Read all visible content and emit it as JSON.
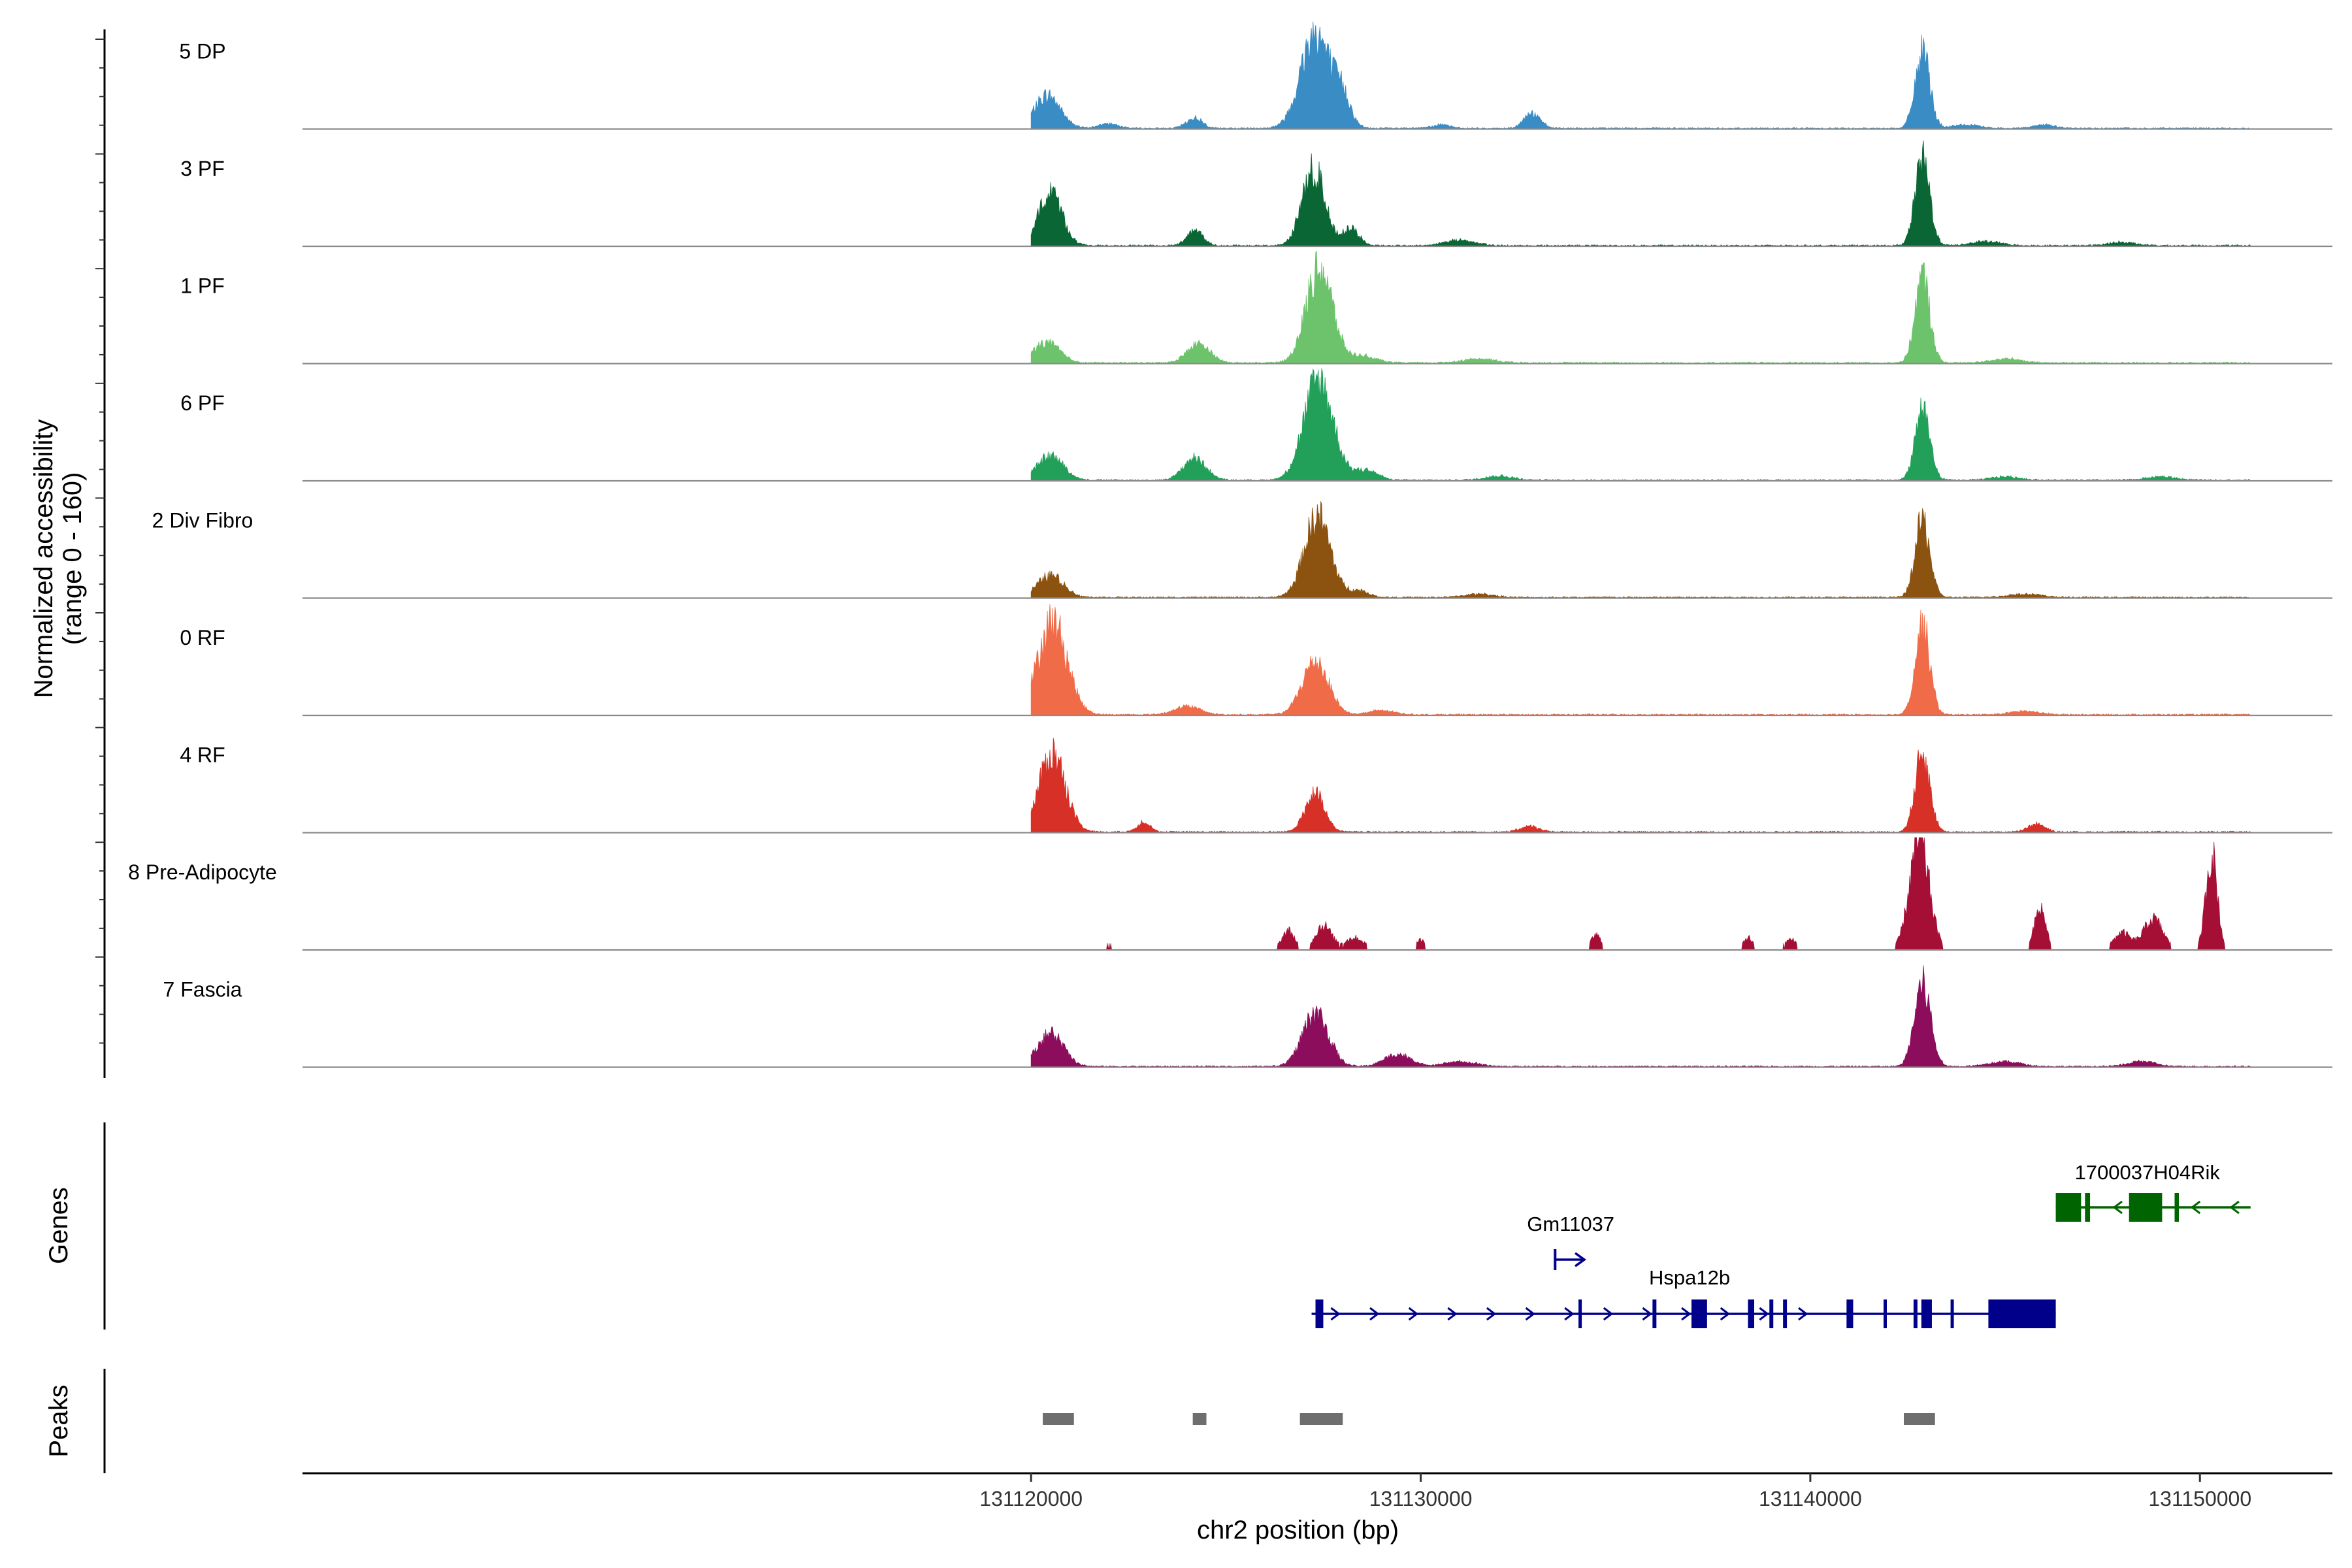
{
  "chart_data": {
    "type": "area",
    "title": "",
    "ylabel": "Normalized accessibility\n(range 0 - 160)",
    "xlabel": "chr2 position (bp)",
    "xlim": [
      131101300,
      131153400
    ],
    "ylim": [
      0,
      160
    ],
    "x_ticks": [
      131120000,
      131130000,
      131140000,
      131150000
    ],
    "x_tick_labels": [
      "131120000",
      "131130000",
      "131140000",
      "131150000"
    ],
    "tracks": [
      {
        "name": "5 DP",
        "color": "#3a8cc4",
        "peaks": [
          [
            131120420,
            48,
            800
          ],
          [
            131122000,
            7,
            600
          ],
          [
            131124200,
            15,
            500
          ],
          [
            131127300,
            140,
            900
          ],
          [
            131128000,
            40,
            500
          ],
          [
            131130500,
            5,
            600
          ],
          [
            131132850,
            22,
            500
          ],
          [
            131142880,
            110,
            450
          ],
          [
            131144000,
            5,
            800
          ],
          [
            131146000,
            5,
            700
          ]
        ]
      },
      {
        "name": "3 PF",
        "color": "#0a6634",
        "peaks": [
          [
            131120500,
            80,
            700
          ],
          [
            131124200,
            22,
            500
          ],
          [
            131127250,
            110,
            700
          ],
          [
            131128200,
            25,
            500
          ],
          [
            131131000,
            8,
            900
          ],
          [
            131142880,
            125,
            450
          ],
          [
            131144500,
            6,
            900
          ],
          [
            131148000,
            5,
            800
          ]
        ]
      },
      {
        "name": "1 PF",
        "color": "#6cc36c",
        "peaks": [
          [
            131120400,
            30,
            800
          ],
          [
            131124300,
            28,
            700
          ],
          [
            131127400,
            140,
            800
          ],
          [
            131128500,
            10,
            800
          ],
          [
            131131500,
            6,
            1000
          ],
          [
            131142880,
            125,
            450
          ],
          [
            131145000,
            6,
            900
          ]
        ]
      },
      {
        "name": "6 PF",
        "color": "#22a05a",
        "peaks": [
          [
            131120500,
            35,
            800
          ],
          [
            131124200,
            32,
            700
          ],
          [
            131127380,
            145,
            900
          ],
          [
            131128600,
            15,
            700
          ],
          [
            131132000,
            6,
            900
          ],
          [
            131142880,
            105,
            450
          ],
          [
            131145000,
            5,
            900
          ],
          [
            131149000,
            5,
            900
          ]
        ]
      },
      {
        "name": "2 Div Fibro",
        "color": "#8c5210",
        "peaks": [
          [
            131120500,
            32,
            800
          ],
          [
            131127350,
            118,
            800
          ],
          [
            131128400,
            10,
            600
          ],
          [
            131131500,
            5,
            900
          ],
          [
            131142880,
            112,
            450
          ],
          [
            131145500,
            5,
            1000
          ]
        ]
      },
      {
        "name": "0 RF",
        "color": "#f06c48",
        "peaks": [
          [
            131120550,
            135,
            900
          ],
          [
            131124000,
            12,
            800
          ],
          [
            131127300,
            78,
            800
          ],
          [
            131129000,
            6,
            800
          ],
          [
            131142880,
            130,
            450
          ],
          [
            131145500,
            5,
            900
          ]
        ]
      },
      {
        "name": "4 RF",
        "color": "#d73027",
        "peaks": [
          [
            131120550,
            115,
            800
          ],
          [
            131122900,
            15,
            400
          ],
          [
            131127280,
            55,
            600
          ],
          [
            131132800,
            8,
            600
          ],
          [
            131142880,
            115,
            450
          ],
          [
            131145800,
            12,
            500
          ]
        ]
      },
      {
        "name": "8 Pre-Adipocyte",
        "color": "#a50f35",
        "peaks": [
          [
            131122000,
            10,
            300
          ],
          [
            131126600,
            28,
            400
          ],
          [
            131127500,
            36,
            500
          ],
          [
            131128300,
            18,
            600
          ],
          [
            131130000,
            15,
            300
          ],
          [
            131134500,
            22,
            300
          ],
          [
            131138400,
            18,
            300
          ],
          [
            131139500,
            15,
            400
          ],
          [
            131142800,
            160,
            600
          ],
          [
            131145900,
            60,
            350
          ],
          [
            131148000,
            25,
            500
          ],
          [
            131148800,
            45,
            600
          ],
          [
            131150300,
            140,
            350
          ]
        ]
      },
      {
        "name": "7 Fascia",
        "color": "#8c0d5c",
        "peaks": [
          [
            131120500,
            48,
            800
          ],
          [
            131127300,
            78,
            800
          ],
          [
            131129400,
            18,
            800
          ],
          [
            131131000,
            7,
            1000
          ],
          [
            131142880,
            120,
            500
          ],
          [
            131145000,
            7,
            1000
          ],
          [
            131148500,
            8,
            800
          ]
        ]
      }
    ],
    "genes_track_label": "Genes",
    "genes": [
      {
        "name": "1700037H04Rik",
        "strand": "-",
        "start": 131146300,
        "end": 131151300,
        "color": "#006400",
        "exons": [
          [
            131146300,
            131146950
          ],
          [
            131147050,
            131147180
          ],
          [
            131148180,
            131149030
          ],
          [
            131149350,
            131149460
          ]
        ]
      },
      {
        "name": "Gm11037",
        "strand": "+",
        "start": 131133450,
        "end": 131134200,
        "color": "#00008b",
        "exons": []
      },
      {
        "name": "Hspa12b",
        "strand": "+",
        "start": 131127200,
        "end": 131146300,
        "color": "#00008b",
        "exons": [
          [
            131127300,
            131127500
          ],
          [
            131134050,
            131134100
          ],
          [
            131135950,
            131136050
          ],
          [
            131136950,
            131137350
          ],
          [
            131138400,
            131138560
          ],
          [
            131138950,
            131139050
          ],
          [
            131139300,
            131139400
          ],
          [
            131140930,
            131141100
          ],
          [
            131141880,
            131141920
          ],
          [
            131142650,
            131142750
          ],
          [
            131142850,
            131143120
          ],
          [
            131143600,
            131143680
          ],
          [
            131144570,
            131146300
          ]
        ]
      }
    ],
    "peaks_track_label": "Peaks",
    "peak_regions": [
      [
        131120300,
        131121100
      ],
      [
        131124150,
        131124500
      ],
      [
        131126900,
        131128000
      ],
      [
        131142400,
        131143200
      ]
    ]
  }
}
